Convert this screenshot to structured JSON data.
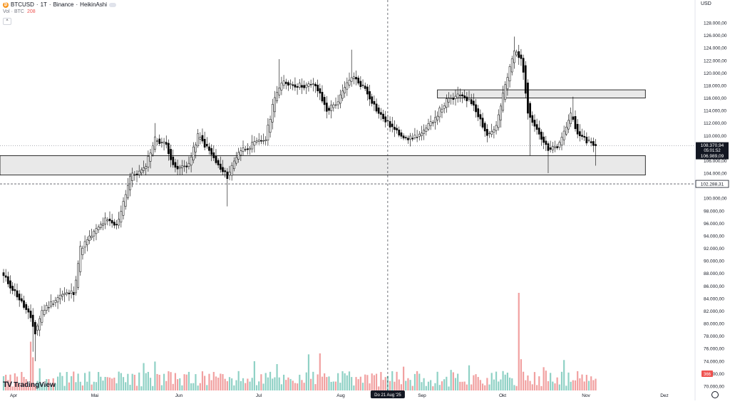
{
  "header": {
    "symbol": "BTCUSD",
    "interval": "1T",
    "exchange": "Binance",
    "chart_style": "HeikinAshi",
    "separator": "·",
    "volume_label": "Vol · BTC",
    "volume_value": "208",
    "collapse_glyph": "^",
    "coin_glyph": "₿"
  },
  "currency": "USD",
  "branding": {
    "logo_mark": "TV",
    "logo_text": "TradingView"
  },
  "colors": {
    "up": "#ffffff",
    "down": "#000000",
    "vol_up": "#8fd1c5",
    "vol_down": "#f1a0a0",
    "zone_fill": "#e9e9e9",
    "zone_stroke": "#000000",
    "last_price_bg": "#131722"
  },
  "chart_data": {
    "type": "candlestick",
    "title": "",
    "ylim": [
      69000,
      130000
    ],
    "y_tick_labels": [
      "128.000,00",
      "126.000,00",
      "124.000,00",
      "122.000,00",
      "120.000,00",
      "118.000,00",
      "116.000,00",
      "114.000,00",
      "112.000,00",
      "110.000,00",
      "108.000,00",
      "106.000,00",
      "104.000,00",
      "102.000,00",
      "100.000,00",
      "98.000,00",
      "96.000,00",
      "94.000,00",
      "92.000,00",
      "90.000,00",
      "88.000,00",
      "86.000,00",
      "84.000,00",
      "82.000,00",
      "80.000,00",
      "78.000,00",
      "76.000,00",
      "74.000,00",
      "72.000,00",
      "70.000,00"
    ],
    "x_tick_labels": [
      "Apr",
      "Mai",
      "Jun",
      "Jul",
      "Aug",
      "Sep",
      "Okt",
      "Nov",
      "Dez"
    ],
    "anchors": [
      {
        "i": 0,
        "p": 87500
      },
      {
        "i": 6,
        "p": 84500
      },
      {
        "i": 11,
        "p": 81500
      },
      {
        "i": 14,
        "p": 78500
      },
      {
        "i": 17,
        "p": 82000
      },
      {
        "i": 25,
        "p": 84500
      },
      {
        "i": 31,
        "p": 85000
      },
      {
        "i": 34,
        "p": 92000
      },
      {
        "i": 40,
        "p": 94500
      },
      {
        "i": 45,
        "p": 96500
      },
      {
        "i": 50,
        "p": 95500
      },
      {
        "i": 56,
        "p": 103500
      },
      {
        "i": 62,
        "p": 104500
      },
      {
        "i": 67,
        "p": 109500
      },
      {
        "i": 72,
        "p": 108500
      },
      {
        "i": 76,
        "p": 104500
      },
      {
        "i": 82,
        "p": 105500
      },
      {
        "i": 86,
        "p": 110000
      },
      {
        "i": 91,
        "p": 107500
      },
      {
        "i": 96,
        "p": 104500
      },
      {
        "i": 99,
        "p": 103500
      },
      {
        "i": 104,
        "p": 107500
      },
      {
        "i": 110,
        "p": 108500
      },
      {
        "i": 116,
        "p": 109500
      },
      {
        "i": 120,
        "p": 116500
      },
      {
        "i": 124,
        "p": 118500
      },
      {
        "i": 130,
        "p": 118000
      },
      {
        "i": 138,
        "p": 118000
      },
      {
        "i": 143,
        "p": 114000
      },
      {
        "i": 148,
        "p": 115500
      },
      {
        "i": 154,
        "p": 119500
      },
      {
        "i": 160,
        "p": 117500
      },
      {
        "i": 166,
        "p": 113500
      },
      {
        "i": 174,
        "p": 110500
      },
      {
        "i": 180,
        "p": 109500
      },
      {
        "i": 186,
        "p": 110500
      },
      {
        "i": 190,
        "p": 112500
      },
      {
        "i": 196,
        "p": 115500
      },
      {
        "i": 203,
        "p": 116500
      },
      {
        "i": 208,
        "p": 115000
      },
      {
        "i": 214,
        "p": 110000
      },
      {
        "i": 218,
        "p": 111500
      },
      {
        "i": 222,
        "p": 118000
      },
      {
        "i": 226,
        "p": 123500
      },
      {
        "i": 229,
        "p": 122500
      },
      {
        "i": 232,
        "p": 114000
      },
      {
        "i": 236,
        "p": 111000
      },
      {
        "i": 241,
        "p": 107500
      },
      {
        "i": 246,
        "p": 108500
      },
      {
        "i": 251,
        "p": 113500
      },
      {
        "i": 255,
        "p": 109500
      },
      {
        "i": 260,
        "p": 109000
      },
      {
        "i": 262,
        "p": 108370.94
      }
    ],
    "volume_spikes": [
      {
        "i": 12,
        "v": 500
      },
      {
        "i": 13,
        "v": 340
      },
      {
        "i": 135,
        "v": 370
      },
      {
        "i": 140,
        "v": 380
      },
      {
        "i": 228,
        "v": 1000
      },
      {
        "i": 229,
        "v": 320
      }
    ],
    "zones": [
      {
        "from_i": 0,
        "to_i": 284,
        "y_top": 106800,
        "y_bottom": 103700
      },
      {
        "from_i": 192,
        "to_i": 284,
        "y_top": 117300,
        "y_bottom": 116000
      }
    ],
    "lines": [
      {
        "style": "dashed",
        "price": 102288.31,
        "label": "102.288,31"
      },
      {
        "style": "dotted",
        "price": 108370.94,
        "label": "108.370,94"
      }
    ],
    "last_price": {
      "price": 108370.94,
      "label": "108.370,94",
      "countdown": "05:01:52"
    },
    "bid_label": {
      "price": 106989.09,
      "label": "106.989,09"
    },
    "crosshair": {
      "i": 170,
      "label": "Do 21 Aug '25"
    },
    "volume_last_label": "366"
  }
}
